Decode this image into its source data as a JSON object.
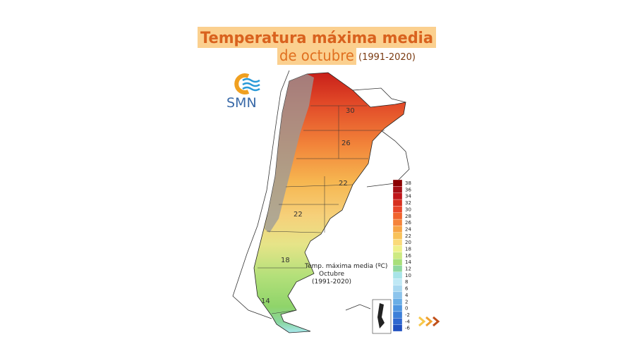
{
  "title": {
    "line1": "Temperatura máxima media",
    "line2": "de octubre",
    "period": "(1991-2020)"
  },
  "logo": {
    "text": "SMN"
  },
  "map": {
    "contour_labels": [
      "30",
      "26",
      "22",
      "22",
      "18",
      "14"
    ]
  },
  "legend": {
    "title": "Temp. máxima media (ºC)",
    "month": "Octubre",
    "period": "(1991-2020)"
  },
  "scale": {
    "labels": [
      "38",
      "36",
      "34",
      "32",
      "30",
      "28",
      "26",
      "24",
      "22",
      "20",
      "18",
      "16",
      "14",
      "12",
      "10",
      "8",
      "6",
      "4",
      "2",
      "0",
      "-2",
      "-4",
      "-6"
    ],
    "colors": [
      "#8b0000",
      "#a50f15",
      "#c0161b",
      "#d7301f",
      "#e8462a",
      "#f0642e",
      "#f5833a",
      "#f7a445",
      "#f8c25a",
      "#fada7a",
      "#eef08a",
      "#cdea82",
      "#a8df7a",
      "#8fd8a0",
      "#a8e4e8",
      "#bfe8f5",
      "#a8d8f0",
      "#8cc4ec",
      "#6aaee6",
      "#4f96e0",
      "#3d7fd8",
      "#2f68d0",
      "#2050c0"
    ]
  }
}
